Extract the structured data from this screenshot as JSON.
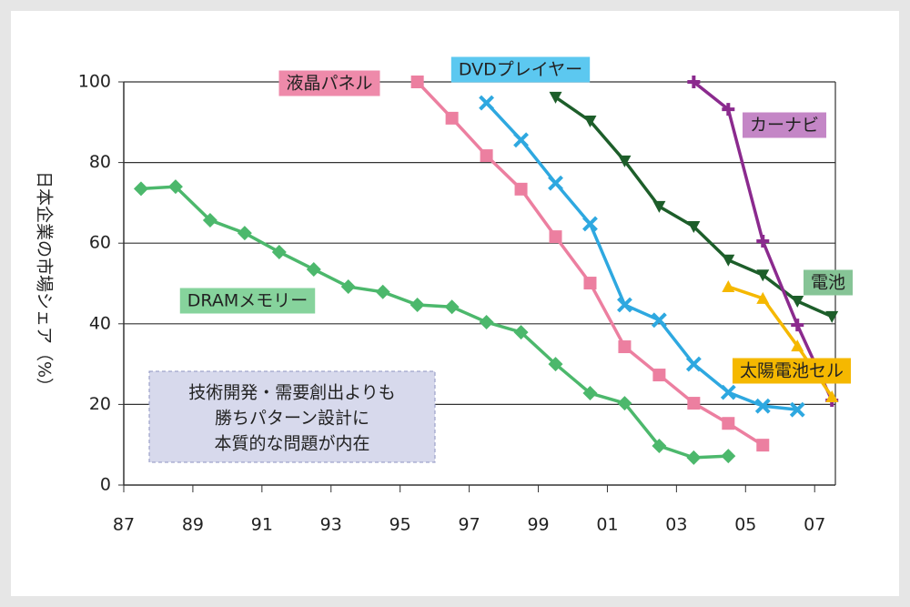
{
  "chart_data": {
    "type": "line",
    "y_label": "日本企業の市場シェア（%）",
    "annotation": [
      "技術開発・需要創出よりも",
      "勝ちパターン設計に",
      "本質的な問題が内在"
    ],
    "xlim": [
      1987,
      2007.6
    ],
    "xticks": [
      {
        "value": 1987,
        "label": "87"
      },
      {
        "value": 1989,
        "label": "89"
      },
      {
        "value": 1991,
        "label": "91"
      },
      {
        "value": 1993,
        "label": "93"
      },
      {
        "value": 1995,
        "label": "95"
      },
      {
        "value": 1997,
        "label": "97"
      },
      {
        "value": 1999,
        "label": "99"
      },
      {
        "value": 2001,
        "label": "01"
      },
      {
        "value": 2003,
        "label": "03"
      },
      {
        "value": 2005,
        "label": "05"
      },
      {
        "value": 2007,
        "label": "07"
      }
    ],
    "ylim": [
      0,
      100
    ],
    "yticks": [
      0,
      20,
      40,
      60,
      80,
      100
    ],
    "grid": true,
    "series": [
      {
        "name": "DRAMメモリー",
        "color": "#4cb86c",
        "label_bg": "#86d39c",
        "marker": "diamond",
        "x": [
          1987.5,
          1988.5,
          1989.5,
          1990.5,
          1991.5,
          1992.5,
          1993.5,
          1994.5,
          1995.5,
          1996.5,
          1997.5,
          1998.5,
          1999.5,
          2000.5,
          2001.5,
          2002.5,
          2003.5,
          2004.5
        ],
        "values": [
          73.5,
          74,
          65.7,
          62.5,
          57.8,
          53.5,
          49.2,
          47.9,
          44.7,
          44.2,
          40.4,
          37.9,
          30,
          22.8,
          20.3,
          9.7,
          6.8,
          7.2
        ]
      },
      {
        "name": "液晶パネル",
        "color": "#ec7fa0",
        "label_bg": "#ee8aaa",
        "marker": "square",
        "x": [
          1995.5,
          1996.5,
          1997.5,
          1998.5,
          1999.5,
          2000.5,
          2001.5,
          2002.5,
          2003.5,
          2004.5,
          2005.5
        ],
        "values": [
          100,
          91,
          81.7,
          73.4,
          61.6,
          50.1,
          34.3,
          27.3,
          20.3,
          15.3,
          9.9
        ]
      },
      {
        "name": "DVDプレイヤー",
        "color": "#2ea8e0",
        "label_bg": "#5cc8f0",
        "marker": "x",
        "x": [
          1997.5,
          1998.5,
          1999.5,
          2000.5,
          2001.5,
          2002.5,
          2003.5,
          2004.5,
          2005.5,
          2006.5
        ],
        "values": [
          94.8,
          85.6,
          74.9,
          64.8,
          44.7,
          40.9,
          30,
          23,
          19.6,
          18.7
        ]
      },
      {
        "name": "電池",
        "color": "#1d5e2a",
        "label_bg": "#86c496",
        "marker": "triangle-down",
        "x": [
          1999.5,
          2000.5,
          2001.5,
          2002.5,
          2003.5,
          2004.5,
          2005.5,
          2006.5,
          2007.5
        ],
        "values": [
          96.2,
          90.3,
          80.4,
          69.1,
          64.1,
          55.8,
          52.1,
          45.6,
          41.8
        ]
      },
      {
        "name": "カーナビ",
        "color": "#8b2a8e",
        "label_bg": "#c486c6",
        "marker": "plus",
        "x": [
          2003.5,
          2004.5,
          2005.5,
          2006.5,
          2007.5
        ],
        "values": [
          100,
          93.2,
          60.5,
          39.7,
          21
        ]
      },
      {
        "name": "太陽電池セル",
        "color": "#f5b800",
        "label_bg": "#f5b800",
        "marker": "triangle-up",
        "x": [
          2004.5,
          2005.5,
          2006.5,
          2007.5
        ],
        "values": [
          49.2,
          46.3,
          34.5,
          21.9
        ]
      }
    ]
  }
}
